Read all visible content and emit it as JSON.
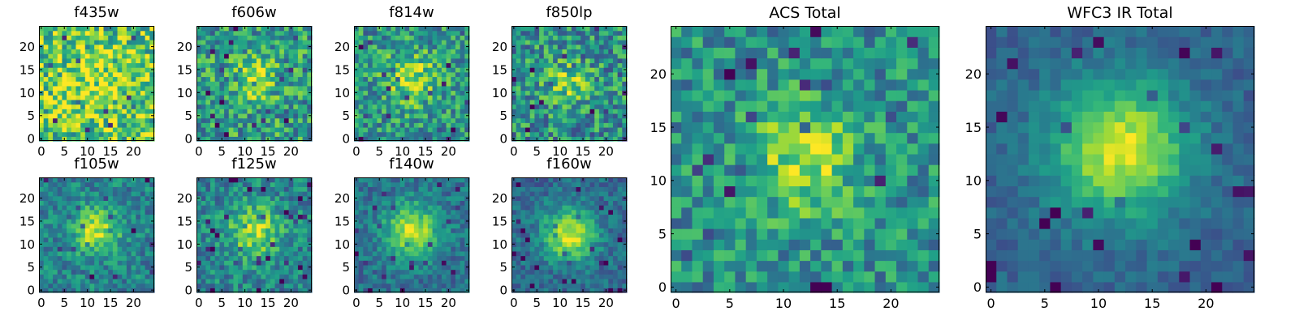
{
  "figure": {
    "colormap": "viridis",
    "colors": {
      "viridis": [
        "#440154",
        "#482878",
        "#3e4989",
        "#31688e",
        "#26828e",
        "#1f9e89",
        "#35b779",
        "#6ece58",
        "#b5de2b",
        "#fde725"
      ],
      "axis": "#000000",
      "background": "#ffffff"
    }
  },
  "chart_data": [
    {
      "type": "heatmap",
      "title": "f435w",
      "size": "small",
      "grid_size": 25,
      "xlim": [
        0,
        24
      ],
      "ylim": [
        0,
        24
      ],
      "xticks": [
        0,
        5,
        10,
        15,
        20
      ],
      "yticks": [
        0,
        5,
        10,
        15,
        20
      ],
      "xlabel": "",
      "ylabel": "",
      "center": [
        12,
        13
      ],
      "sigma": 6,
      "peak": 0.15,
      "base": 0.72,
      "noise": 0.32,
      "seed": 11
    },
    {
      "type": "heatmap",
      "title": "f606w",
      "size": "small",
      "grid_size": 25,
      "xlim": [
        0,
        24
      ],
      "ylim": [
        0,
        24
      ],
      "xticks": [
        0,
        5,
        10,
        15,
        20
      ],
      "yticks": [
        0,
        5,
        10,
        15,
        20
      ],
      "xlabel": "",
      "ylabel": "",
      "center": [
        12,
        13
      ],
      "sigma": 3.5,
      "peak": 0.3,
      "base": 0.55,
      "noise": 0.28,
      "seed": 23
    },
    {
      "type": "heatmap",
      "title": "f814w",
      "size": "small",
      "grid_size": 25,
      "xlim": [
        0,
        24
      ],
      "ylim": [
        0,
        24
      ],
      "xticks": [
        0,
        5,
        10,
        15,
        20
      ],
      "yticks": [
        0,
        5,
        10,
        15,
        20
      ],
      "xlabel": "",
      "ylabel": "",
      "center": [
        12,
        13
      ],
      "sigma": 4,
      "peak": 0.35,
      "base": 0.52,
      "noise": 0.26,
      "seed": 37
    },
    {
      "type": "heatmap",
      "title": "f850lp",
      "size": "small",
      "grid_size": 25,
      "xlim": [
        0,
        24
      ],
      "ylim": [
        0,
        24
      ],
      "xticks": [
        0,
        5,
        10,
        15,
        20
      ],
      "yticks": [
        0,
        5,
        10,
        15,
        20
      ],
      "xlabel": "",
      "ylabel": "",
      "center": [
        12,
        12
      ],
      "sigma": 3.5,
      "peak": 0.28,
      "base": 0.5,
      "noise": 0.28,
      "seed": 41
    },
    {
      "type": "heatmap",
      "title": "f105w",
      "size": "small",
      "grid_size": 25,
      "xlim": [
        0,
        24
      ],
      "ylim": [
        0,
        24
      ],
      "xticks": [
        0,
        5,
        10,
        15,
        20
      ],
      "yticks": [
        0,
        5,
        10,
        15,
        20
      ],
      "xlabel": "",
      "ylabel": "",
      "center": [
        12,
        13
      ],
      "sigma": 3.5,
      "peak": 0.45,
      "base": 0.45,
      "noise": 0.18,
      "seed": 53
    },
    {
      "type": "heatmap",
      "title": "f125w",
      "size": "small",
      "grid_size": 25,
      "xlim": [
        0,
        24
      ],
      "ylim": [
        0,
        24
      ],
      "xticks": [
        0,
        5,
        10,
        15,
        20
      ],
      "yticks": [
        0,
        5,
        10,
        15,
        20
      ],
      "xlabel": "",
      "ylabel": "",
      "center": [
        12,
        13
      ],
      "sigma": 4,
      "peak": 0.42,
      "base": 0.45,
      "noise": 0.2,
      "seed": 67
    },
    {
      "type": "heatmap",
      "title": "f140w",
      "size": "small",
      "grid_size": 25,
      "xlim": [
        0,
        24
      ],
      "ylim": [
        0,
        24
      ],
      "xticks": [
        0,
        5,
        10,
        15,
        20
      ],
      "yticks": [
        0,
        5,
        10,
        15,
        20
      ],
      "xlabel": "",
      "ylabel": "",
      "center": [
        12,
        13
      ],
      "sigma": 4,
      "peak": 0.55,
      "base": 0.38,
      "noise": 0.15,
      "seed": 79
    },
    {
      "type": "heatmap",
      "title": "f160w",
      "size": "small",
      "grid_size": 25,
      "xlim": [
        0,
        24
      ],
      "ylim": [
        0,
        24
      ],
      "xticks": [
        0,
        5,
        10,
        15,
        20
      ],
      "yticks": [
        0,
        5,
        10,
        15,
        20
      ],
      "xlabel": "",
      "ylabel": "",
      "center": [
        12,
        12
      ],
      "sigma": 4,
      "peak": 0.58,
      "base": 0.35,
      "noise": 0.14,
      "seed": 83
    },
    {
      "type": "heatmap",
      "title": "ACS Total",
      "size": "large",
      "grid_size": 25,
      "xlim": [
        0,
        24
      ],
      "ylim": [
        0,
        24
      ],
      "xticks": [
        0,
        5,
        10,
        15,
        20
      ],
      "yticks": [
        0,
        5,
        10,
        15,
        20
      ],
      "xlabel": "",
      "ylabel": "",
      "center": [
        12,
        12
      ],
      "sigma": 3.5,
      "peak": 0.38,
      "base": 0.5,
      "noise": 0.22,
      "seed": 97
    },
    {
      "type": "heatmap",
      "title": "WFC3 IR Total",
      "size": "large",
      "grid_size": 25,
      "xlim": [
        0,
        24
      ],
      "ylim": [
        0,
        24
      ],
      "xticks": [
        0,
        5,
        10,
        15,
        20
      ],
      "yticks": [
        0,
        5,
        10,
        15,
        20
      ],
      "xlabel": "",
      "ylabel": "",
      "center": [
        12,
        13
      ],
      "sigma": 4.5,
      "peak": 0.62,
      "base": 0.32,
      "noise": 0.09,
      "seed": 101
    }
  ]
}
